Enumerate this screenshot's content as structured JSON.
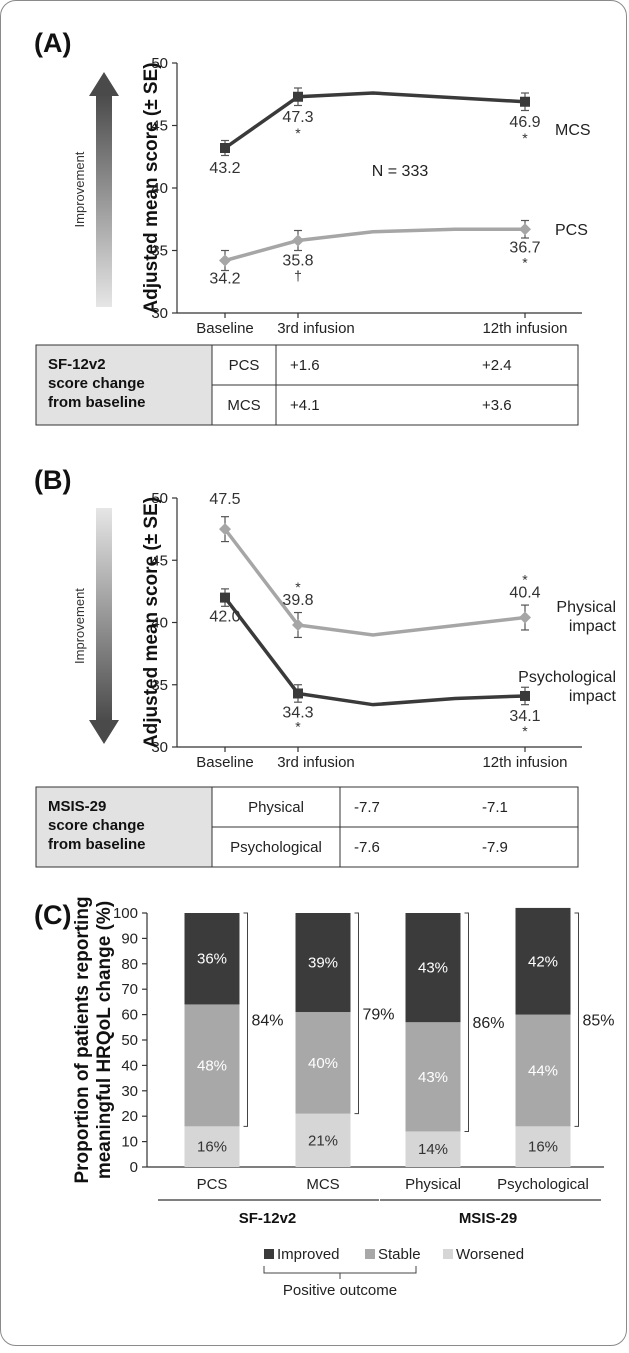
{
  "figure": {
    "panel_a": {
      "letter": "(A)",
      "improvement_label": "Improvement",
      "note": "N = 333",
      "table": {
        "header": "SF-12v2 score change from baseline",
        "header_lines": [
          "SF-12v2",
          "score change",
          "from baseline"
        ],
        "rows": [
          {
            "label": "PCS",
            "v1": "+1.6",
            "v2": "+2.4"
          },
          {
            "label": "MCS",
            "v1": "+4.1",
            "v2": "+3.6"
          }
        ]
      }
    },
    "panel_b": {
      "letter": "(B)",
      "improvement_label": "Improvement",
      "table": {
        "header": "MSIS-29 score change from baseline",
        "header_lines": [
          "MSIS-29",
          "score change",
          "from baseline"
        ],
        "rows": [
          {
            "label": "Physical",
            "v1": "-7.7",
            "v2": "-7.1"
          },
          {
            "label": "Psychological",
            "v1": "-7.6",
            "v2": "-7.9"
          }
        ]
      }
    },
    "panel_c": {
      "letter": "(C)"
    }
  },
  "chart_data": [
    {
      "type": "line",
      "ylabel": "Adjusted mean score (± SE)",
      "ylim": [
        30,
        50
      ],
      "yticks": [
        30,
        35,
        40,
        45,
        50
      ],
      "x_labels": [
        "Baseline",
        "3rd infusion",
        "12th infusion"
      ],
      "series": [
        {
          "name": "MCS",
          "color": "#3a3a3a",
          "marker": "square",
          "points": [
            {
              "x": "Baseline",
              "y": 43.2,
              "err": 0.6,
              "label": "43.2",
              "mark": ""
            },
            {
              "x": "3rd infusion",
              "y": 47.3,
              "err": 0.7,
              "label": "47.3",
              "mark": "*"
            },
            {
              "x": "12th infusion",
              "y": 46.9,
              "err": 0.7,
              "label": "46.9",
              "mark": "*"
            }
          ]
        },
        {
          "name": "PCS",
          "color": "#a6a6a6",
          "marker": "diamond",
          "points": [
            {
              "x": "Baseline",
              "y": 34.2,
              "err": 0.8,
              "label": "34.2",
              "mark": ""
            },
            {
              "x": "3rd infusion",
              "y": 35.8,
              "err": 0.8,
              "label": "35.8",
              "mark": "†"
            },
            {
              "x": "12th infusion",
              "y": 36.7,
              "err": 0.7,
              "label": "36.7",
              "mark": "*"
            }
          ]
        }
      ]
    },
    {
      "type": "line",
      "ylabel": "Adjusted mean score (± SE)",
      "ylim": [
        30,
        50
      ],
      "yticks": [
        30,
        35,
        40,
        45,
        50
      ],
      "x_labels": [
        "Baseline",
        "3rd infusion",
        "12th infusion"
      ],
      "series": [
        {
          "name": "Physical impact",
          "name_lines": [
            "Physical",
            "impact"
          ],
          "color": "#a6a6a6",
          "marker": "diamond",
          "points": [
            {
              "x": "Baseline",
              "y": 47.5,
              "err": 1.0,
              "label": "47.5",
              "mark": ""
            },
            {
              "x": "3rd infusion",
              "y": 39.8,
              "err": 1.0,
              "label": "39.8",
              "mark": "*"
            },
            {
              "x": "12th infusion",
              "y": 40.4,
              "err": 1.0,
              "label": "40.4",
              "mark": "*"
            }
          ]
        },
        {
          "name": "Psychological impact",
          "name_lines": [
            "Psychological",
            "impact"
          ],
          "color": "#3a3a3a",
          "marker": "square",
          "points": [
            {
              "x": "Baseline",
              "y": 42.0,
              "err": 0.7,
              "label": "42.0",
              "mark": ""
            },
            {
              "x": "3rd infusion",
              "y": 34.3,
              "err": 0.7,
              "label": "34.3",
              "mark": "*"
            },
            {
              "x": "12th infusion",
              "y": 34.1,
              "err": 0.7,
              "label": "34.1",
              "mark": "*"
            }
          ]
        }
      ]
    },
    {
      "type": "bar",
      "stacked": true,
      "ylabel": "Proportion of patients reporting meaningful HRQoL change (%)",
      "ylabel_lines": [
        "Proportion of patients reporting",
        "meaningful HRQoL change (%)"
      ],
      "ylim": [
        0,
        100
      ],
      "yticks": [
        0,
        10,
        20,
        30,
        40,
        50,
        60,
        70,
        80,
        90,
        100
      ],
      "categories": [
        "PCS",
        "MCS",
        "Physical",
        "Psychological"
      ],
      "groups": [
        {
          "name": "SF-12v2",
          "categories": [
            "PCS",
            "MCS"
          ]
        },
        {
          "name": "MSIS-29",
          "categories": [
            "Physical",
            "Psychological"
          ]
        }
      ],
      "series": [
        {
          "name": "Worsened",
          "color": "#d6d6d6",
          "values": [
            16,
            21,
            14,
            16
          ],
          "labels": [
            "16%",
            "21%",
            "14%",
            "16%"
          ]
        },
        {
          "name": "Stable",
          "color": "#a8a8a8",
          "values": [
            48,
            40,
            43,
            44
          ],
          "labels": [
            "48%",
            "40%",
            "43%",
            "44%"
          ]
        },
        {
          "name": "Improved",
          "color": "#3b3b3b",
          "values": [
            36,
            39,
            43,
            42
          ],
          "labels": [
            "36%",
            "39%",
            "43%",
            "42%"
          ]
        }
      ],
      "positive_outcome": [
        "84%",
        "79%",
        "86%",
        "85%"
      ],
      "legend_order": [
        "Improved",
        "Stable",
        "Worsened"
      ],
      "legend_note": "Positive outcome"
    }
  ]
}
